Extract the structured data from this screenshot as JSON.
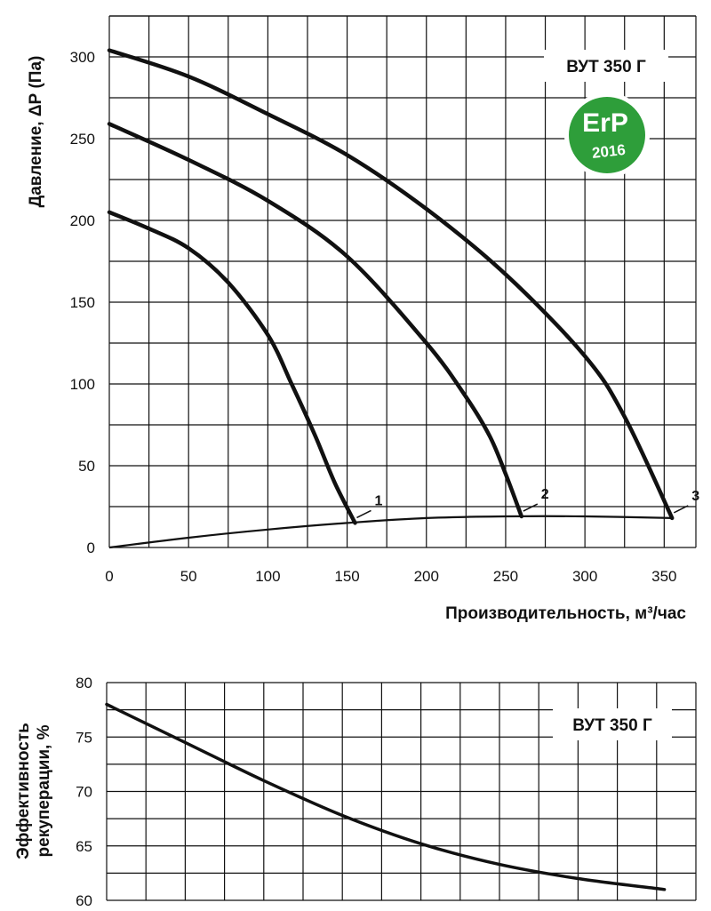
{
  "chart_data": [
    {
      "type": "line",
      "title": "ВУТ 350 Г",
      "xlabel": "Производительность, м³/час",
      "ylabel": "Давление, ΔР (Па)",
      "xlim": [
        0,
        370
      ],
      "ylim": [
        0,
        325
      ],
      "x_ticks": [
        "0",
        "50",
        "100",
        "150",
        "200",
        "250",
        "300",
        "350"
      ],
      "y_ticks": [
        "0",
        "50",
        "100",
        "150",
        "200",
        "250",
        "300"
      ],
      "badge": {
        "text": "ErP",
        "year": "2016",
        "color": "#2e9e3a"
      },
      "series": [
        {
          "name": "1",
          "x": [
            0,
            25,
            50,
            75,
            100,
            115,
            130,
            142,
            155
          ],
          "y": [
            205,
            195,
            183,
            162,
            130,
            100,
            68,
            40,
            15
          ]
        },
        {
          "name": "2",
          "x": [
            0,
            50,
            100,
            150,
            200,
            225,
            240,
            250,
            260
          ],
          "y": [
            259,
            237,
            212,
            178,
            125,
            92,
            68,
            45,
            19
          ]
        },
        {
          "name": "3",
          "x": [
            0,
            50,
            100,
            150,
            200,
            250,
            300,
            325,
            355
          ],
          "y": [
            304,
            288,
            265,
            240,
            207,
            167,
            117,
            80,
            18
          ]
        },
        {
          "name": "system",
          "x": [
            0,
            50,
            100,
            150,
            200,
            250,
            300,
            355
          ],
          "y": [
            0,
            6,
            11,
            15,
            18,
            19,
            19,
            18
          ]
        }
      ]
    },
    {
      "type": "line",
      "title": "ВУТ 350 Г",
      "xlabel": "",
      "ylabel": "Эффективность рекуперации, %",
      "ylim": [
        60,
        80
      ],
      "xlim": [
        0,
        375
      ],
      "y_ticks": [
        "60",
        "65",
        "70",
        "75",
        "80"
      ],
      "series": [
        {
          "name": "efficiency",
          "x": [
            0,
            50,
            100,
            150,
            200,
            250,
            300,
            355
          ],
          "y": [
            78,
            74.5,
            71,
            67.8,
            65.2,
            63.3,
            62,
            61
          ]
        }
      ]
    }
  ]
}
